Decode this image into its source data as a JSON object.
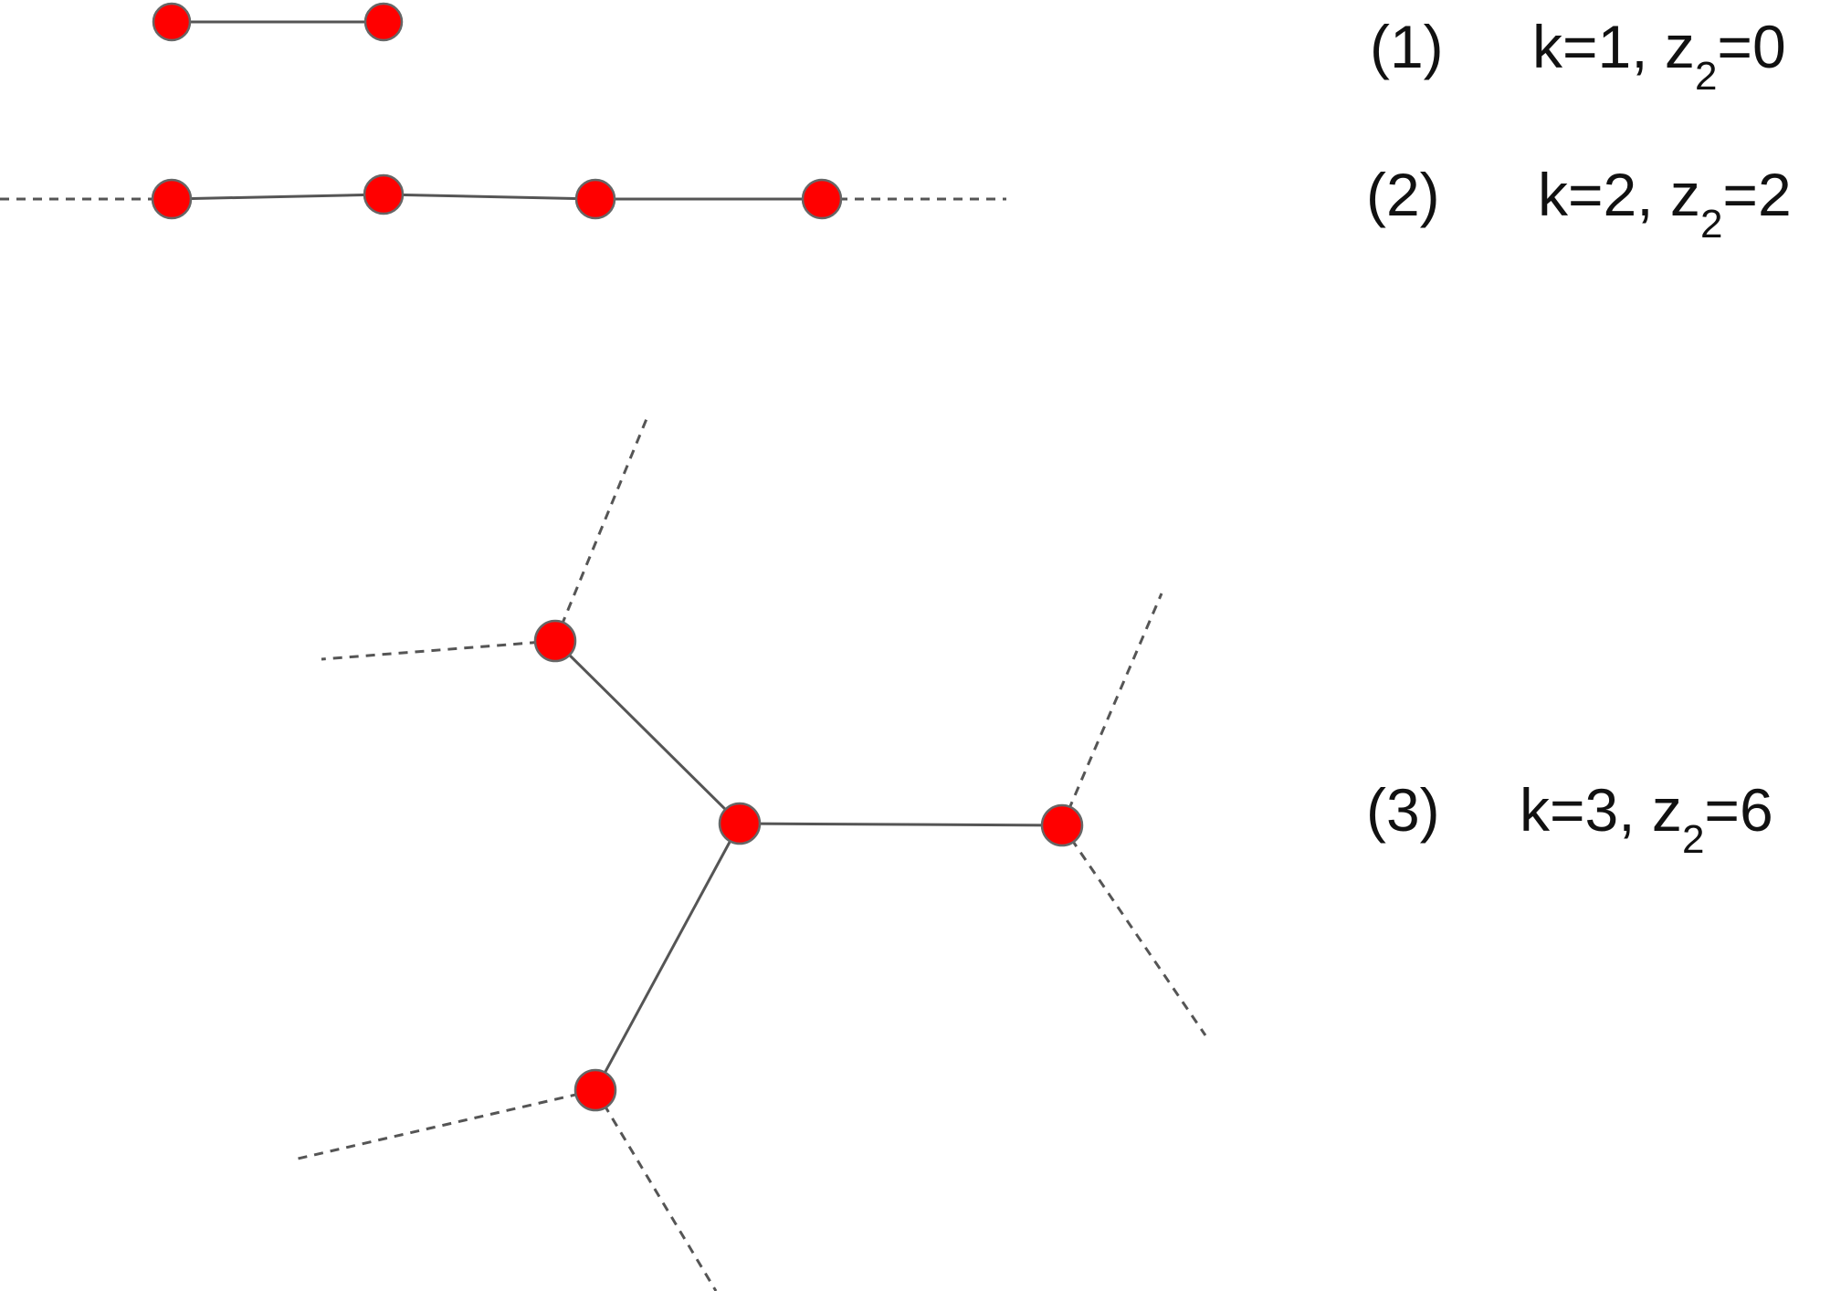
{
  "node_color": "#ff0000",
  "node_stroke_color": "#666666",
  "edge_color": "#555555",
  "captions": [
    {
      "index": "(1)",
      "k_text": "k=1, z",
      "subscript": "2",
      "value_text": "=0"
    },
    {
      "index": "(2)",
      "k_text": "k=2, z",
      "subscript": "2",
      "value_text": "=2"
    },
    {
      "index": "(3)",
      "k_text": "k=3, z",
      "subscript": "2",
      "value_text": "=6"
    }
  ]
}
